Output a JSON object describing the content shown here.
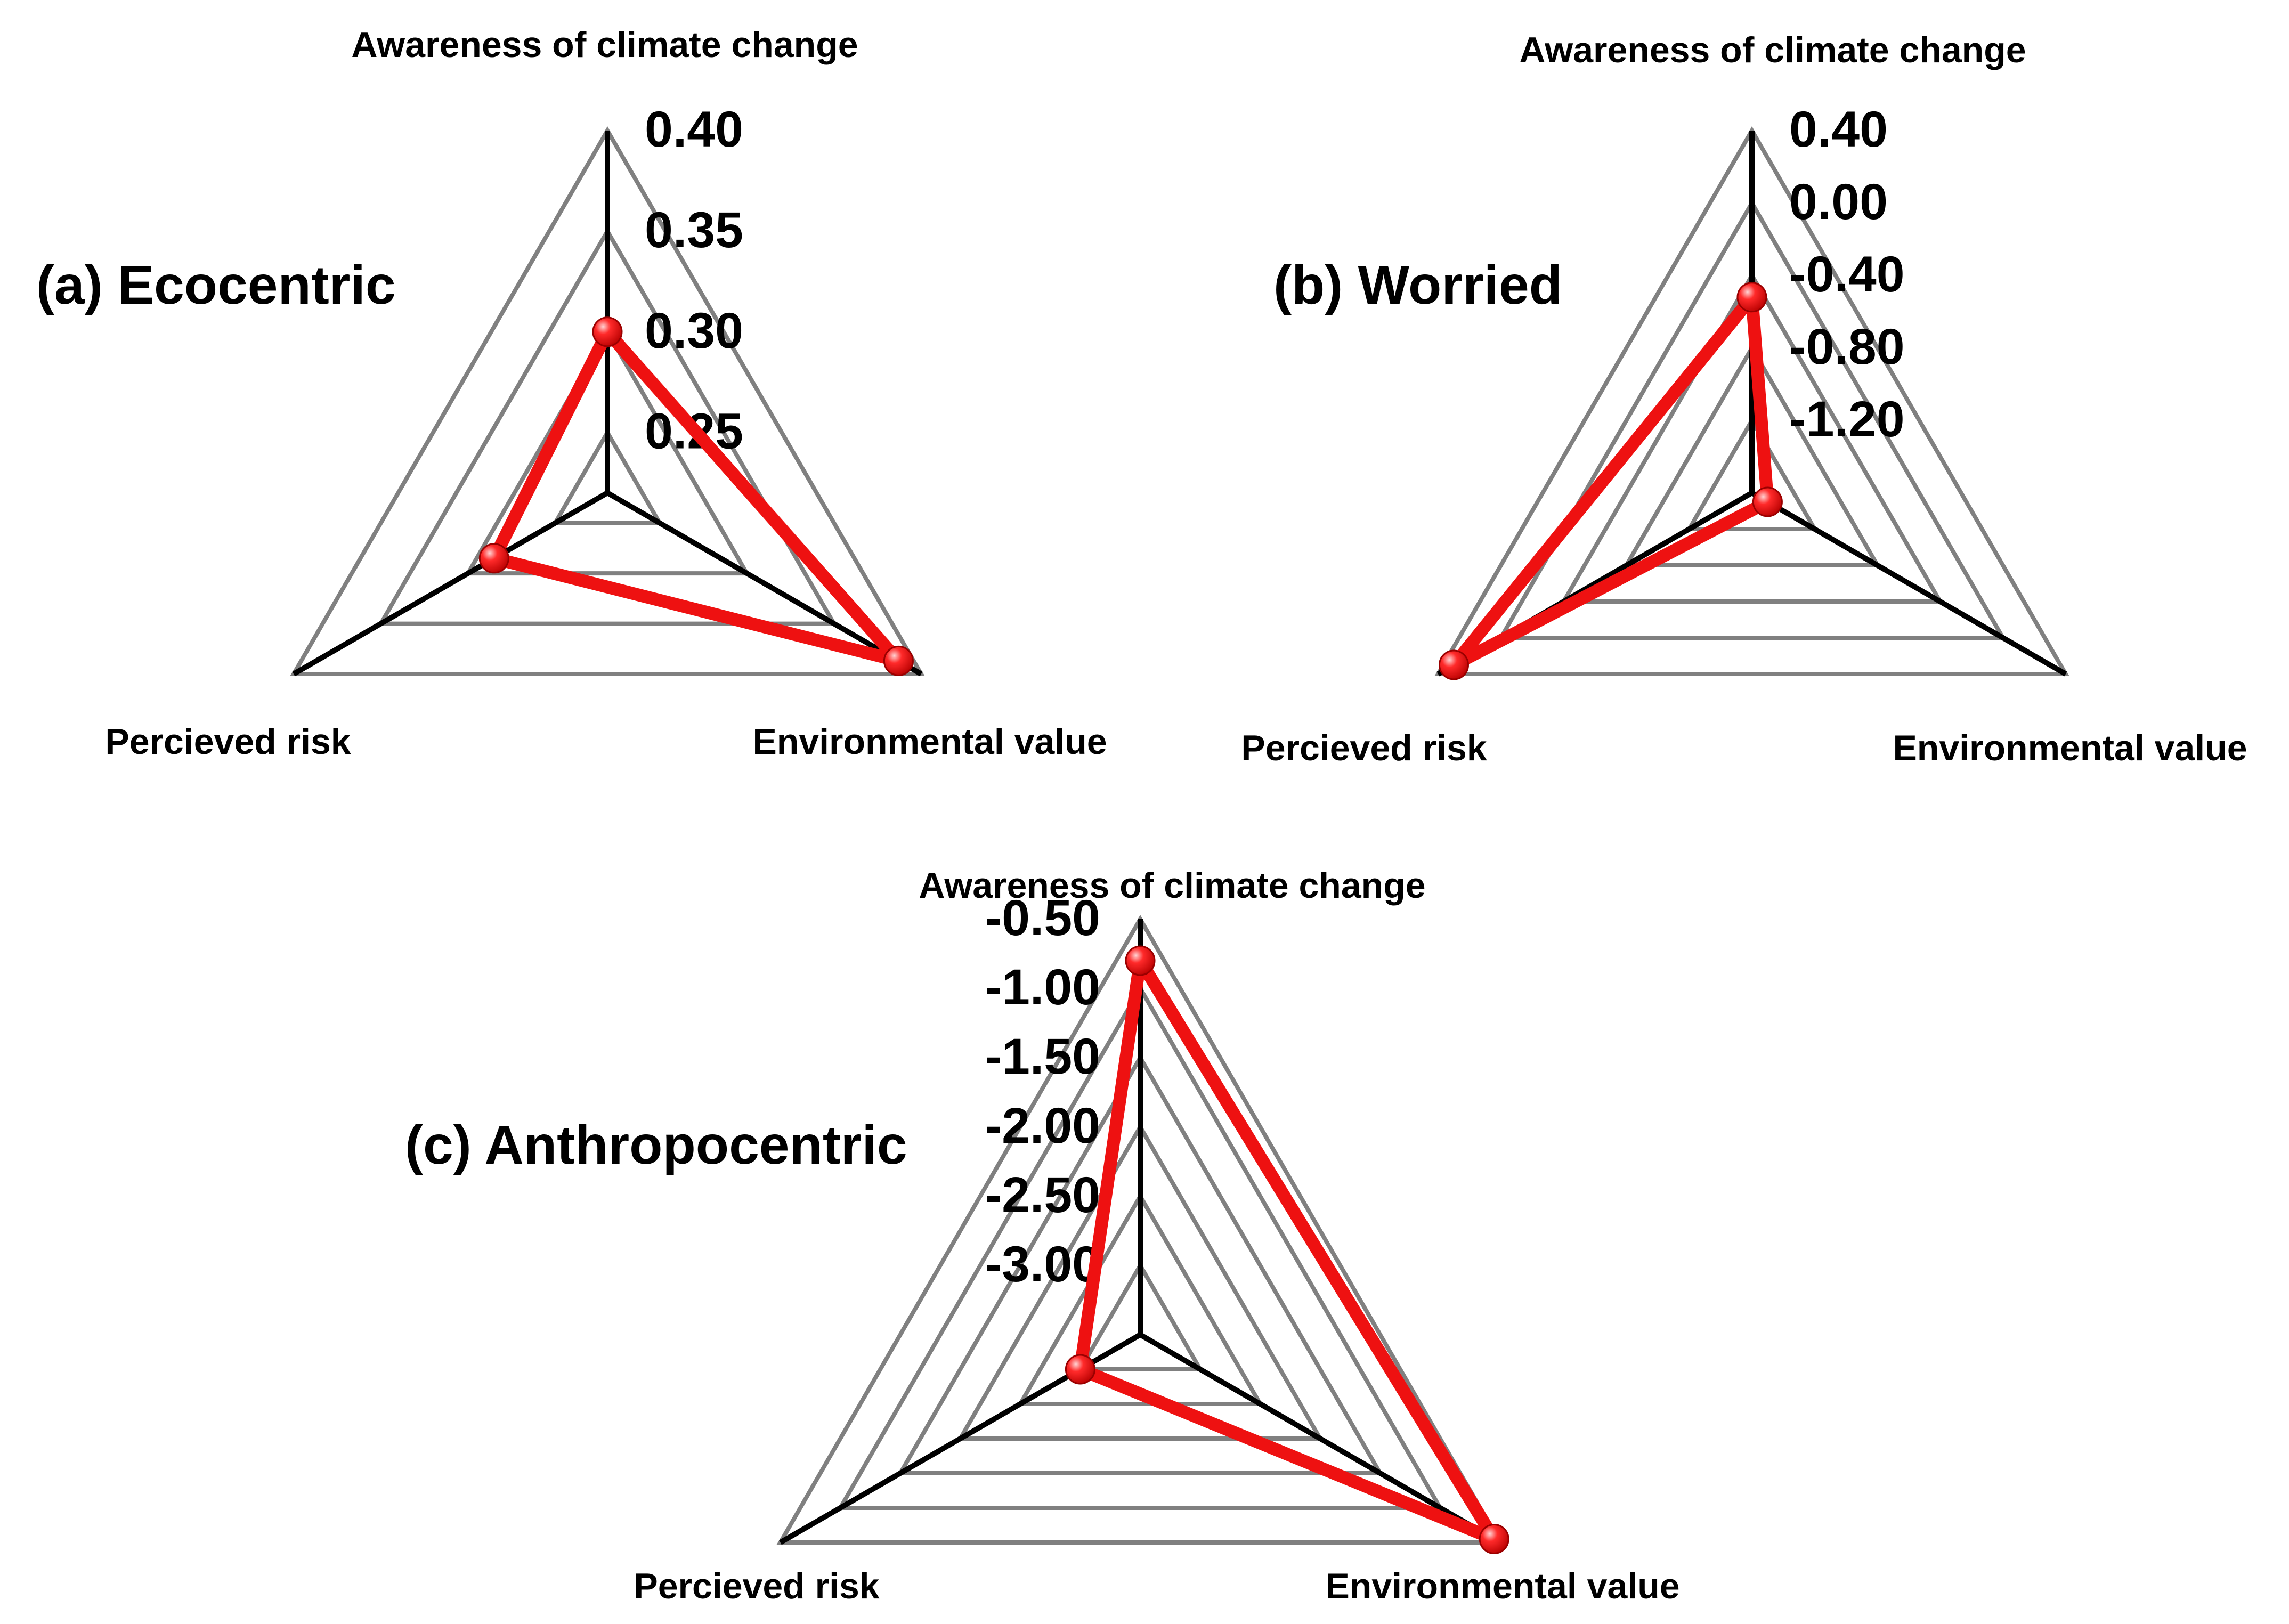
{
  "chart_data": [
    {
      "type": "radar",
      "title": "(a) Ecocentric",
      "axes": [
        "Awareness of climate change",
        "Environmental value",
        "Percieved risk"
      ],
      "rlim": [
        0.22,
        0.4
      ],
      "ticks": [
        0.25,
        0.3,
        0.35,
        0.4
      ],
      "tick_labels": [
        "0.25",
        "0.30",
        "0.35",
        "0.40"
      ],
      "series": [
        {
          "name": "Ecocentric",
          "values": [
            0.3,
            0.387,
            0.285
          ]
        }
      ]
    },
    {
      "type": "radar",
      "title": "(b) Worried",
      "axes": [
        "Awareness of climate change",
        "Environmental value",
        "Percieved risk"
      ],
      "rlim": [
        -1.6,
        0.4
      ],
      "ticks": [
        -1.2,
        -0.8,
        -0.4,
        0.0,
        0.4
      ],
      "tick_labels": [
        "-1.20",
        "-0.80",
        "-0.40",
        "0.00",
        "0.40"
      ],
      "series": [
        {
          "name": "Worried",
          "values": [
            -0.52,
            -1.5,
            0.3
          ]
        }
      ]
    },
    {
      "type": "radar",
      "title": "(c) Anthropocentric",
      "axes": [
        "Awareness of climate change",
        "Environmental value",
        "Percieved risk"
      ],
      "rlim": [
        -3.5,
        -0.5
      ],
      "ticks": [
        -3.0,
        -2.5,
        -2.0,
        -1.5,
        -1.0,
        -0.5
      ],
      "tick_labels": [
        "-3.00",
        "-2.50",
        "-2.00",
        "-1.50",
        "-1.00",
        "-0.50"
      ],
      "series": [
        {
          "name": "Anthropocentric",
          "values": [
            -0.8,
            -0.55,
            -3.0
          ]
        }
      ]
    }
  ],
  "colors": {
    "series": "#ee1111",
    "grid": "#808080",
    "axis": "#000000"
  }
}
